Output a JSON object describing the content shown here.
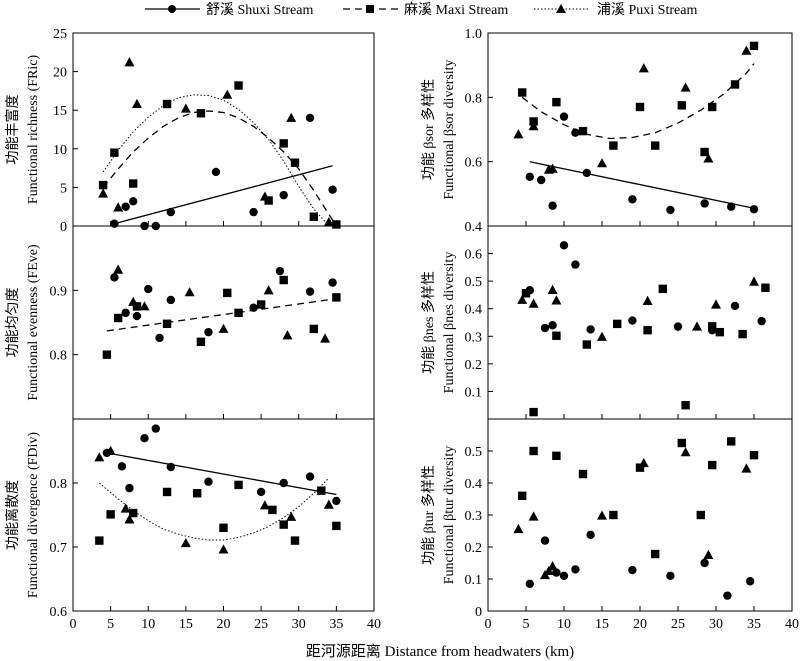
{
  "legend": {
    "shuxi": "舒溪 Shuxi Stream",
    "maxi": "麻溪 Maxi Stream",
    "puxi": "浦溪 Puxi Stream"
  },
  "xlabel": "距河源距离 Distance from headwaters (km)",
  "colors": {
    "ink": "#000000"
  },
  "chart_data": [
    {
      "id": "fric",
      "type": "scatter",
      "ylabel_zh": "功能丰富度",
      "ylabel_en": "Functional richness (FRic)",
      "xlim": [
        0,
        40
      ],
      "ylim": [
        0,
        25
      ],
      "xticks": [
        0,
        5,
        10,
        15,
        20,
        25,
        30,
        35,
        40
      ],
      "yticks": [
        0,
        5,
        10,
        15,
        20,
        25
      ],
      "series": [
        {
          "name": "舒溪 Shuxi Stream",
          "marker": "circle",
          "x": [
            5.5,
            7,
            8,
            9.5,
            11,
            13,
            19,
            24,
            28,
            31.5,
            34.5
          ],
          "y": [
            0.3,
            2.5,
            3.2,
            0,
            0,
            1.8,
            7,
            1.8,
            4,
            14,
            4.7
          ]
        },
        {
          "name": "麻溪 Maxi Stream",
          "marker": "square",
          "x": [
            4,
            5.5,
            8,
            12.5,
            17,
            22,
            26,
            28,
            29.5,
            32,
            35
          ],
          "y": [
            5.3,
            9.5,
            5.5,
            15.8,
            14.6,
            18.2,
            3.3,
            10.7,
            8.2,
            1.2,
            0.2
          ]
        },
        {
          "name": "浦溪 Puxi Stream",
          "marker": "triangle",
          "x": [
            4,
            6,
            7.5,
            8.5,
            15,
            20.5,
            25.5,
            29,
            34
          ],
          "y": [
            4.2,
            2.4,
            21.2,
            15.8,
            15.2,
            17,
            3.8,
            14,
            0.5
          ]
        }
      ],
      "fits": [
        {
          "series": "舒溪 Shuxi Stream",
          "style": "solid",
          "x": [
            5.5,
            34.5
          ],
          "y": [
            0.3,
            7.8
          ]
        },
        {
          "series": "麻溪 Maxi Stream",
          "style": "dashed",
          "x": [
            4,
            6,
            8,
            10,
            12,
            14,
            16,
            18,
            20,
            22,
            24,
            26,
            28,
            30,
            32,
            34,
            35
          ],
          "y": [
            5,
            7.4,
            9.6,
            11.4,
            12.9,
            14,
            14.7,
            14.9,
            14.7,
            14,
            12.9,
            11.4,
            9.6,
            7.4,
            4.6,
            1.5,
            0
          ]
        },
        {
          "series": "浦溪 Puxi Stream",
          "style": "dotted",
          "x": [
            4,
            6,
            8,
            10,
            12,
            14,
            16,
            18,
            20,
            22,
            24,
            26,
            28,
            30,
            32,
            34
          ],
          "y": [
            7,
            9.8,
            12.2,
            14.1,
            15.6,
            16.6,
            17,
            16.9,
            16.3,
            15.1,
            13.4,
            11.2,
            8.4,
            5.1,
            2.2,
            0
          ]
        }
      ]
    },
    {
      "id": "feve",
      "type": "scatter",
      "ylabel_zh": "功能均匀度",
      "ylabel_en": "Functional evenness (FEve)",
      "xlim": [
        0,
        40
      ],
      "ylim": [
        0.7,
        1.0
      ],
      "xticks": [
        0,
        5,
        10,
        15,
        20,
        25,
        30,
        35,
        40
      ],
      "yticks": [
        0.8,
        0.9
      ],
      "series": [
        {
          "name": "舒溪 Shuxi Stream",
          "marker": "circle",
          "x": [
            5.5,
            7,
            8.5,
            10,
            11.5,
            13,
            18,
            24,
            27.5,
            31.5,
            34.5
          ],
          "y": [
            0.92,
            0.865,
            0.86,
            0.902,
            0.826,
            0.885,
            0.835,
            0.873,
            0.93,
            0.898,
            0.912
          ]
        },
        {
          "name": "麻溪 Maxi Stream",
          "marker": "square",
          "x": [
            4.5,
            6,
            8.5,
            12.5,
            17,
            20.5,
            22,
            25,
            28,
            32,
            35
          ],
          "y": [
            0.8,
            0.857,
            0.875,
            0.848,
            0.82,
            0.896,
            0.865,
            0.878,
            0.916,
            0.84,
            0.889
          ]
        },
        {
          "name": "浦溪 Puxi Stream",
          "marker": "triangle",
          "x": [
            6,
            8,
            9.5,
            15.5,
            20,
            26,
            28.5,
            33.5
          ],
          "y": [
            0.932,
            0.882,
            0.875,
            0.897,
            0.84,
            0.9,
            0.83,
            0.825
          ]
        }
      ],
      "fits": [
        {
          "series": "麻溪 Maxi Stream",
          "style": "dashed",
          "x": [
            4.5,
            35
          ],
          "y": [
            0.837,
            0.887
          ]
        }
      ]
    },
    {
      "id": "fdiv",
      "type": "scatter",
      "ylabel_zh": "功能离散度",
      "ylabel_en": "Functional divergence (FDiv)",
      "xlim": [
        0,
        40
      ],
      "ylim": [
        0.6,
        0.9
      ],
      "xticks": [
        0,
        5,
        10,
        15,
        20,
        25,
        30,
        35,
        40
      ],
      "yticks": [
        0.6,
        0.7,
        0.8
      ],
      "series": [
        {
          "name": "舒溪 Shuxi Stream",
          "marker": "circle",
          "x": [
            4.5,
            6.5,
            7.5,
            9.5,
            11,
            13,
            18,
            25,
            28,
            31.5,
            35
          ],
          "y": [
            0.847,
            0.826,
            0.792,
            0.87,
            0.885,
            0.825,
            0.802,
            0.786,
            0.8,
            0.81,
            0.772
          ]
        },
        {
          "name": "麻溪 Maxi Stream",
          "marker": "square",
          "x": [
            3.5,
            5,
            8,
            12.5,
            16.5,
            20,
            22,
            26.5,
            28,
            29.5,
            33,
            35
          ],
          "y": [
            0.71,
            0.751,
            0.753,
            0.786,
            0.784,
            0.73,
            0.797,
            0.758,
            0.735,
            0.71,
            0.788,
            0.733
          ]
        },
        {
          "name": "浦溪 Puxi Stream",
          "marker": "triangle",
          "x": [
            3.5,
            5,
            7,
            7.5,
            15,
            20,
            25.5,
            29,
            34
          ],
          "y": [
            0.84,
            0.85,
            0.76,
            0.743,
            0.706,
            0.696,
            0.765,
            0.747,
            0.766
          ]
        }
      ],
      "fits": [
        {
          "series": "舒溪 Shuxi Stream",
          "style": "solid",
          "x": [
            4.5,
            35
          ],
          "y": [
            0.847,
            0.782
          ]
        },
        {
          "series": "浦溪 Puxi Stream",
          "style": "dotted",
          "x": [
            3.5,
            6,
            8,
            10,
            12,
            14,
            16,
            18,
            20,
            22,
            24,
            26,
            28,
            30,
            32,
            34
          ],
          "y": [
            0.8,
            0.775,
            0.757,
            0.741,
            0.728,
            0.72,
            0.714,
            0.711,
            0.711,
            0.715,
            0.722,
            0.732,
            0.746,
            0.763,
            0.784,
            0.808
          ]
        }
      ]
    },
    {
      "id": "bsor",
      "type": "scatter",
      "ylabel_zh": "功能 βsor 多样性",
      "ylabel_en": "Functional βsor diversity",
      "xlim": [
        0,
        40
      ],
      "ylim": [
        0.4,
        1.0
      ],
      "xticks": [
        0,
        5,
        10,
        15,
        20,
        25,
        30,
        35,
        40
      ],
      "yticks": [
        0.4,
        0.6,
        0.8,
        1.0
      ],
      "series": [
        {
          "name": "舒溪 Shuxi Stream",
          "marker": "circle",
          "x": [
            5.5,
            7,
            8.5,
            10,
            11.5,
            13,
            19,
            24,
            28.5,
            32,
            35
          ],
          "y": [
            0.553,
            0.543,
            0.463,
            0.74,
            0.69,
            0.565,
            0.483,
            0.45,
            0.47,
            0.46,
            0.452
          ]
        },
        {
          "name": "麻溪 Maxi Stream",
          "marker": "square",
          "x": [
            4.5,
            6,
            9,
            12.5,
            16.5,
            20,
            22,
            25.5,
            28.5,
            29.5,
            32.5,
            35
          ],
          "y": [
            0.815,
            0.725,
            0.785,
            0.695,
            0.65,
            0.77,
            0.65,
            0.775,
            0.63,
            0.77,
            0.84,
            0.96
          ]
        },
        {
          "name": "浦溪 Puxi Stream",
          "marker": "triangle",
          "x": [
            4,
            6,
            8,
            8.5,
            15,
            20.5,
            26,
            29,
            34
          ],
          "y": [
            0.685,
            0.71,
            0.575,
            0.578,
            0.595,
            0.89,
            0.83,
            0.61,
            0.945
          ]
        }
      ],
      "fits": [
        {
          "series": "舒溪 Shuxi Stream",
          "style": "solid",
          "x": [
            5.5,
            35
          ],
          "y": [
            0.6,
            0.455
          ]
        },
        {
          "series": "麻溪 Maxi Stream",
          "style": "dashed",
          "x": [
            4.5,
            7,
            10,
            13,
            16,
            19,
            22,
            25,
            28,
            31,
            34,
            35
          ],
          "y": [
            0.8,
            0.755,
            0.715,
            0.685,
            0.672,
            0.675,
            0.69,
            0.72,
            0.76,
            0.81,
            0.875,
            0.905
          ]
        }
      ]
    },
    {
      "id": "bnes",
      "type": "scatter",
      "ylabel_zh": "功能 βnes 多样性",
      "ylabel_en": "Functional βnes diversity",
      "xlim": [
        0,
        40
      ],
      "ylim": [
        0,
        0.7
      ],
      "xticks": [
        0,
        5,
        10,
        15,
        20,
        25,
        30,
        35,
        40
      ],
      "yticks": [
        0.1,
        0.2,
        0.3,
        0.4,
        0.5,
        0.6
      ],
      "series": [
        {
          "name": "舒溪 Shuxi Stream",
          "marker": "circle",
          "x": [
            5.5,
            7.5,
            8.5,
            10,
            11.5,
            13.5,
            19,
            25,
            29.5,
            32.5,
            36
          ],
          "y": [
            0.467,
            0.33,
            0.34,
            0.63,
            0.56,
            0.325,
            0.357,
            0.335,
            0.322,
            0.41,
            0.355
          ]
        },
        {
          "name": "麻溪 Maxi Stream",
          "marker": "square",
          "x": [
            5,
            6,
            9,
            13,
            17,
            21,
            23,
            26,
            29.5,
            30.5,
            33.5,
            36.5
          ],
          "y": [
            0.456,
            0.025,
            0.302,
            0.27,
            0.345,
            0.322,
            0.472,
            0.05,
            0.336,
            0.315,
            0.308,
            0.476
          ]
        },
        {
          "name": "浦溪 Puxi Stream",
          "marker": "triangle",
          "x": [
            4.5,
            6,
            8.5,
            9,
            15,
            21,
            27.5,
            30,
            35
          ],
          "y": [
            0.432,
            0.418,
            0.468,
            0.43,
            0.298,
            0.428,
            0.335,
            0.415,
            0.498
          ]
        }
      ],
      "fits": []
    },
    {
      "id": "btur",
      "type": "scatter",
      "ylabel_zh": "功能 βtur 多样性",
      "ylabel_en": "Functional βtur diversity",
      "xlim": [
        0,
        40
      ],
      "ylim": [
        0,
        0.6
      ],
      "xticks": [
        0,
        5,
        10,
        15,
        20,
        25,
        30,
        35,
        40
      ],
      "yticks": [
        0,
        0.1,
        0.2,
        0.3,
        0.4,
        0.5
      ],
      "series": [
        {
          "name": "舒溪 Shuxi Stream",
          "marker": "circle",
          "x": [
            5.5,
            7.5,
            9,
            10,
            11.5,
            13.5,
            19,
            24,
            28.5,
            31.5,
            34.5
          ],
          "y": [
            0.085,
            0.22,
            0.12,
            0.11,
            0.13,
            0.238,
            0.128,
            0.11,
            0.15,
            0.048,
            0.093
          ]
        },
        {
          "name": "麻溪 Maxi Stream",
          "marker": "square",
          "x": [
            4.5,
            6,
            9,
            12.5,
            16.5,
            20,
            22,
            25.5,
            28,
            29.5,
            32,
            35
          ],
          "y": [
            0.36,
            0.5,
            0.485,
            0.428,
            0.3,
            0.448,
            0.178,
            0.525,
            0.3,
            0.456,
            0.53,
            0.487
          ]
        },
        {
          "name": "浦溪 Puxi Stream",
          "marker": "triangle",
          "x": [
            4,
            6,
            7.5,
            8,
            8.5,
            15,
            20.5,
            26,
            29,
            34
          ],
          "y": [
            0.256,
            0.295,
            0.112,
            0.125,
            0.14,
            0.298,
            0.462,
            0.496,
            0.175,
            0.445
          ]
        }
      ],
      "fits": []
    }
  ]
}
